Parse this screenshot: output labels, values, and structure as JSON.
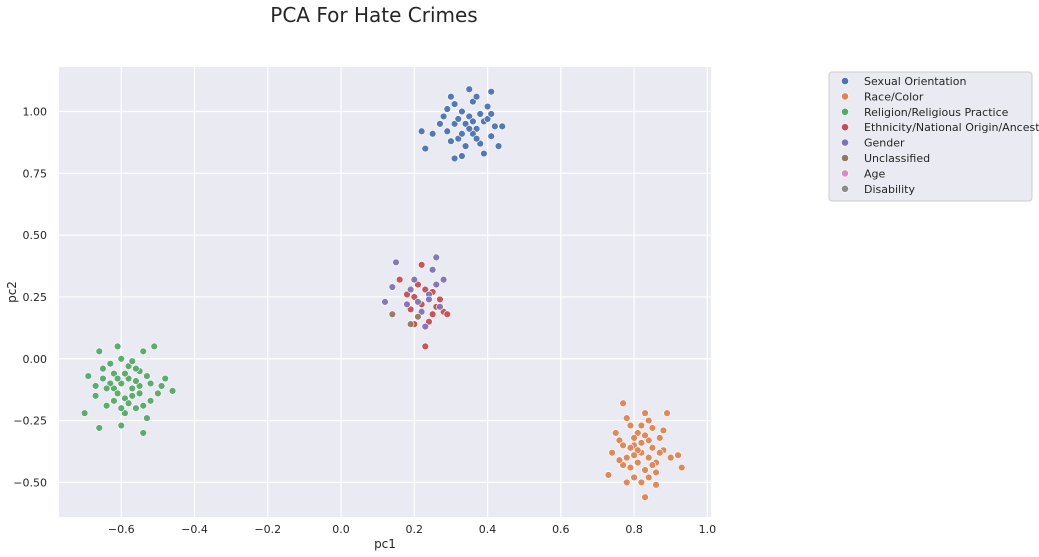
{
  "chart_data": {
    "type": "scatter",
    "title": "PCA For Hate Crimes",
    "xlabel": "pc1",
    "ylabel": "pc2",
    "xlim": [
      -0.77,
      1.01
    ],
    "ylim": [
      -0.64,
      1.18
    ],
    "xticks": [
      -0.6,
      -0.4,
      -0.2,
      0.0,
      0.2,
      0.4,
      0.6,
      0.8,
      1.0
    ],
    "xtick_labels": [
      "−0.6",
      "−0.4",
      "−0.2",
      "0.0",
      "0.2",
      "0.4",
      "0.6",
      "0.8",
      "1.0"
    ],
    "yticks": [
      1.0,
      0.75,
      0.5,
      0.25,
      0.0,
      -0.25,
      -0.5
    ],
    "ytick_labels": [
      "1.00",
      "0.75",
      "0.50",
      "0.25",
      "0.00",
      "−0.25",
      "−0.50"
    ],
    "grid": true,
    "legend_placement": "right, outside plot",
    "series": [
      {
        "name": "Sexual Orientation",
        "color": "#4c72b0",
        "points": [
          [
            0.29,
            0.92
          ],
          [
            0.31,
            0.95
          ],
          [
            0.33,
            1.0
          ],
          [
            0.35,
            0.98
          ],
          [
            0.37,
            0.93
          ],
          [
            0.39,
            0.96
          ],
          [
            0.41,
            0.9
          ],
          [
            0.34,
            0.86
          ],
          [
            0.32,
            0.89
          ],
          [
            0.36,
            1.04
          ],
          [
            0.4,
            1.02
          ],
          [
            0.3,
            1.06
          ],
          [
            0.38,
            0.87
          ],
          [
            0.42,
            0.94
          ],
          [
            0.28,
            0.98
          ],
          [
            0.33,
            0.82
          ],
          [
            0.35,
            1.09
          ],
          [
            0.37,
            1.06
          ],
          [
            0.31,
            1.03
          ],
          [
            0.41,
            1.08
          ],
          [
            0.23,
            0.85
          ],
          [
            0.22,
            0.92
          ],
          [
            0.44,
            0.94
          ],
          [
            0.43,
            0.86
          ],
          [
            0.39,
            0.83
          ],
          [
            0.31,
            0.81
          ],
          [
            0.3,
            0.88
          ],
          [
            0.34,
            0.95
          ],
          [
            0.36,
            0.91
          ],
          [
            0.38,
            0.99
          ],
          [
            0.32,
            0.97
          ],
          [
            0.27,
            0.95
          ],
          [
            0.4,
            0.97
          ],
          [
            0.35,
            0.93
          ],
          [
            0.33,
            0.91
          ],
          [
            0.29,
            1.01
          ],
          [
            0.37,
            0.89
          ],
          [
            0.25,
            0.91
          ],
          [
            0.41,
            0.99
          ],
          [
            0.36,
            0.96
          ]
        ]
      },
      {
        "name": "Race/Color",
        "color": "#dd8452",
        "points": [
          [
            0.8,
            -0.35
          ],
          [
            0.82,
            -0.38
          ],
          [
            0.84,
            -0.33
          ],
          [
            0.78,
            -0.4
          ],
          [
            0.86,
            -0.42
          ],
          [
            0.81,
            -0.3
          ],
          [
            0.83,
            -0.45
          ],
          [
            0.79,
            -0.36
          ],
          [
            0.85,
            -0.28
          ],
          [
            0.77,
            -0.43
          ],
          [
            0.88,
            -0.37
          ],
          [
            0.8,
            -0.48
          ],
          [
            0.76,
            -0.33
          ],
          [
            0.84,
            -0.25
          ],
          [
            0.82,
            -0.5
          ],
          [
            0.9,
            -0.4
          ],
          [
            0.74,
            -0.38
          ],
          [
            0.87,
            -0.32
          ],
          [
            0.79,
            -0.27
          ],
          [
            0.83,
            -0.22
          ],
          [
            0.77,
            -0.18
          ],
          [
            0.89,
            -0.22
          ],
          [
            0.73,
            -0.47
          ],
          [
            0.93,
            -0.44
          ],
          [
            0.92,
            -0.39
          ],
          [
            0.83,
            -0.56
          ],
          [
            0.78,
            -0.5
          ],
          [
            0.81,
            -0.42
          ],
          [
            0.85,
            -0.36
          ],
          [
            0.8,
            -0.32
          ],
          [
            0.86,
            -0.46
          ],
          [
            0.75,
            -0.3
          ],
          [
            0.82,
            -0.34
          ],
          [
            0.79,
            -0.44
          ],
          [
            0.84,
            -0.4
          ],
          [
            0.88,
            -0.29
          ],
          [
            0.81,
            -0.37
          ],
          [
            0.78,
            -0.24
          ],
          [
            0.86,
            -0.51
          ],
          [
            0.83,
            -0.31
          ],
          [
            0.76,
            -0.41
          ],
          [
            0.8,
            -0.39
          ],
          [
            0.85,
            -0.43
          ],
          [
            0.82,
            -0.27
          ],
          [
            0.77,
            -0.35
          ],
          [
            0.87,
            -0.38
          ],
          [
            0.84,
            -0.48
          ]
        ]
      },
      {
        "name": "Religion/Religious Practice",
        "color": "#55a868",
        "points": [
          [
            -0.6,
            -0.1
          ],
          [
            -0.58,
            -0.08
          ],
          [
            -0.62,
            -0.12
          ],
          [
            -0.55,
            -0.05
          ],
          [
            -0.57,
            -0.15
          ],
          [
            -0.63,
            -0.02
          ],
          [
            -0.52,
            -0.1
          ],
          [
            -0.65,
            -0.08
          ],
          [
            -0.6,
            0.0
          ],
          [
            -0.56,
            -0.2
          ],
          [
            -0.5,
            -0.14
          ],
          [
            -0.67,
            -0.15
          ],
          [
            -0.59,
            -0.22
          ],
          [
            -0.54,
            0.03
          ],
          [
            -0.61,
            0.05
          ],
          [
            -0.48,
            -0.08
          ],
          [
            -0.69,
            -0.07
          ],
          [
            -0.64,
            -0.19
          ],
          [
            -0.53,
            -0.24
          ],
          [
            -0.58,
            -0.03
          ],
          [
            -0.7,
            -0.22
          ],
          [
            -0.66,
            -0.28
          ],
          [
            -0.54,
            -0.3
          ],
          [
            -0.46,
            -0.13
          ],
          [
            -0.51,
            0.05
          ],
          [
            -0.66,
            0.03
          ],
          [
            -0.6,
            -0.27
          ],
          [
            -0.57,
            -0.12
          ],
          [
            -0.62,
            -0.06
          ],
          [
            -0.55,
            -0.11
          ],
          [
            -0.59,
            -0.16
          ],
          [
            -0.63,
            -0.1
          ],
          [
            -0.56,
            -0.04
          ],
          [
            -0.61,
            -0.14
          ],
          [
            -0.58,
            -0.18
          ],
          [
            -0.64,
            -0.12
          ],
          [
            -0.53,
            -0.07
          ],
          [
            -0.57,
            -0.01
          ],
          [
            -0.6,
            -0.2
          ],
          [
            -0.52,
            -0.17
          ],
          [
            -0.65,
            -0.04
          ],
          [
            -0.49,
            -0.11
          ],
          [
            -0.62,
            -0.17
          ],
          [
            -0.55,
            -0.14
          ],
          [
            -0.59,
            -0.06
          ],
          [
            -0.56,
            -0.09
          ],
          [
            -0.61,
            -0.08
          ],
          [
            -0.54,
            -0.19
          ],
          [
            -0.67,
            -0.11
          ]
        ]
      },
      {
        "name": "Ethnicity/National Origin/Ancestry",
        "color": "#c44e52",
        "points": [
          [
            0.22,
            0.22
          ],
          [
            0.25,
            0.18
          ],
          [
            0.2,
            0.25
          ],
          [
            0.27,
            0.24
          ],
          [
            0.23,
            0.28
          ],
          [
            0.19,
            0.2
          ],
          [
            0.26,
            0.21
          ],
          [
            0.24,
            0.15
          ],
          [
            0.21,
            0.3
          ],
          [
            0.28,
            0.19
          ],
          [
            0.22,
            0.38
          ],
          [
            0.23,
            0.05
          ],
          [
            0.16,
            0.32
          ],
          [
            0.2,
            0.14
          ],
          [
            0.29,
            0.18
          ],
          [
            0.25,
            0.27
          ],
          [
            0.18,
            0.26
          ]
        ]
      },
      {
        "name": "Gender",
        "color": "#8172b3",
        "points": [
          [
            0.21,
            0.23
          ],
          [
            0.24,
            0.26
          ],
          [
            0.19,
            0.28
          ],
          [
            0.26,
            0.3
          ],
          [
            0.22,
            0.19
          ],
          [
            0.27,
            0.21
          ],
          [
            0.2,
            0.32
          ],
          [
            0.25,
            0.36
          ],
          [
            0.15,
            0.39
          ],
          [
            0.26,
            0.41
          ],
          [
            0.12,
            0.23
          ],
          [
            0.14,
            0.29
          ],
          [
            0.28,
            0.32
          ],
          [
            0.23,
            0.13
          ],
          [
            0.18,
            0.22
          ],
          [
            0.24,
            0.24
          ]
        ]
      },
      {
        "name": "Unclassified",
        "color": "#937860",
        "points": [
          [
            0.14,
            0.18
          ],
          [
            0.19,
            0.14
          ],
          [
            0.21,
            0.17
          ]
        ]
      },
      {
        "name": "Age",
        "color": "#da8bc3",
        "points": []
      },
      {
        "name": "Disability",
        "color": "#8c8c8c",
        "points": []
      }
    ]
  }
}
